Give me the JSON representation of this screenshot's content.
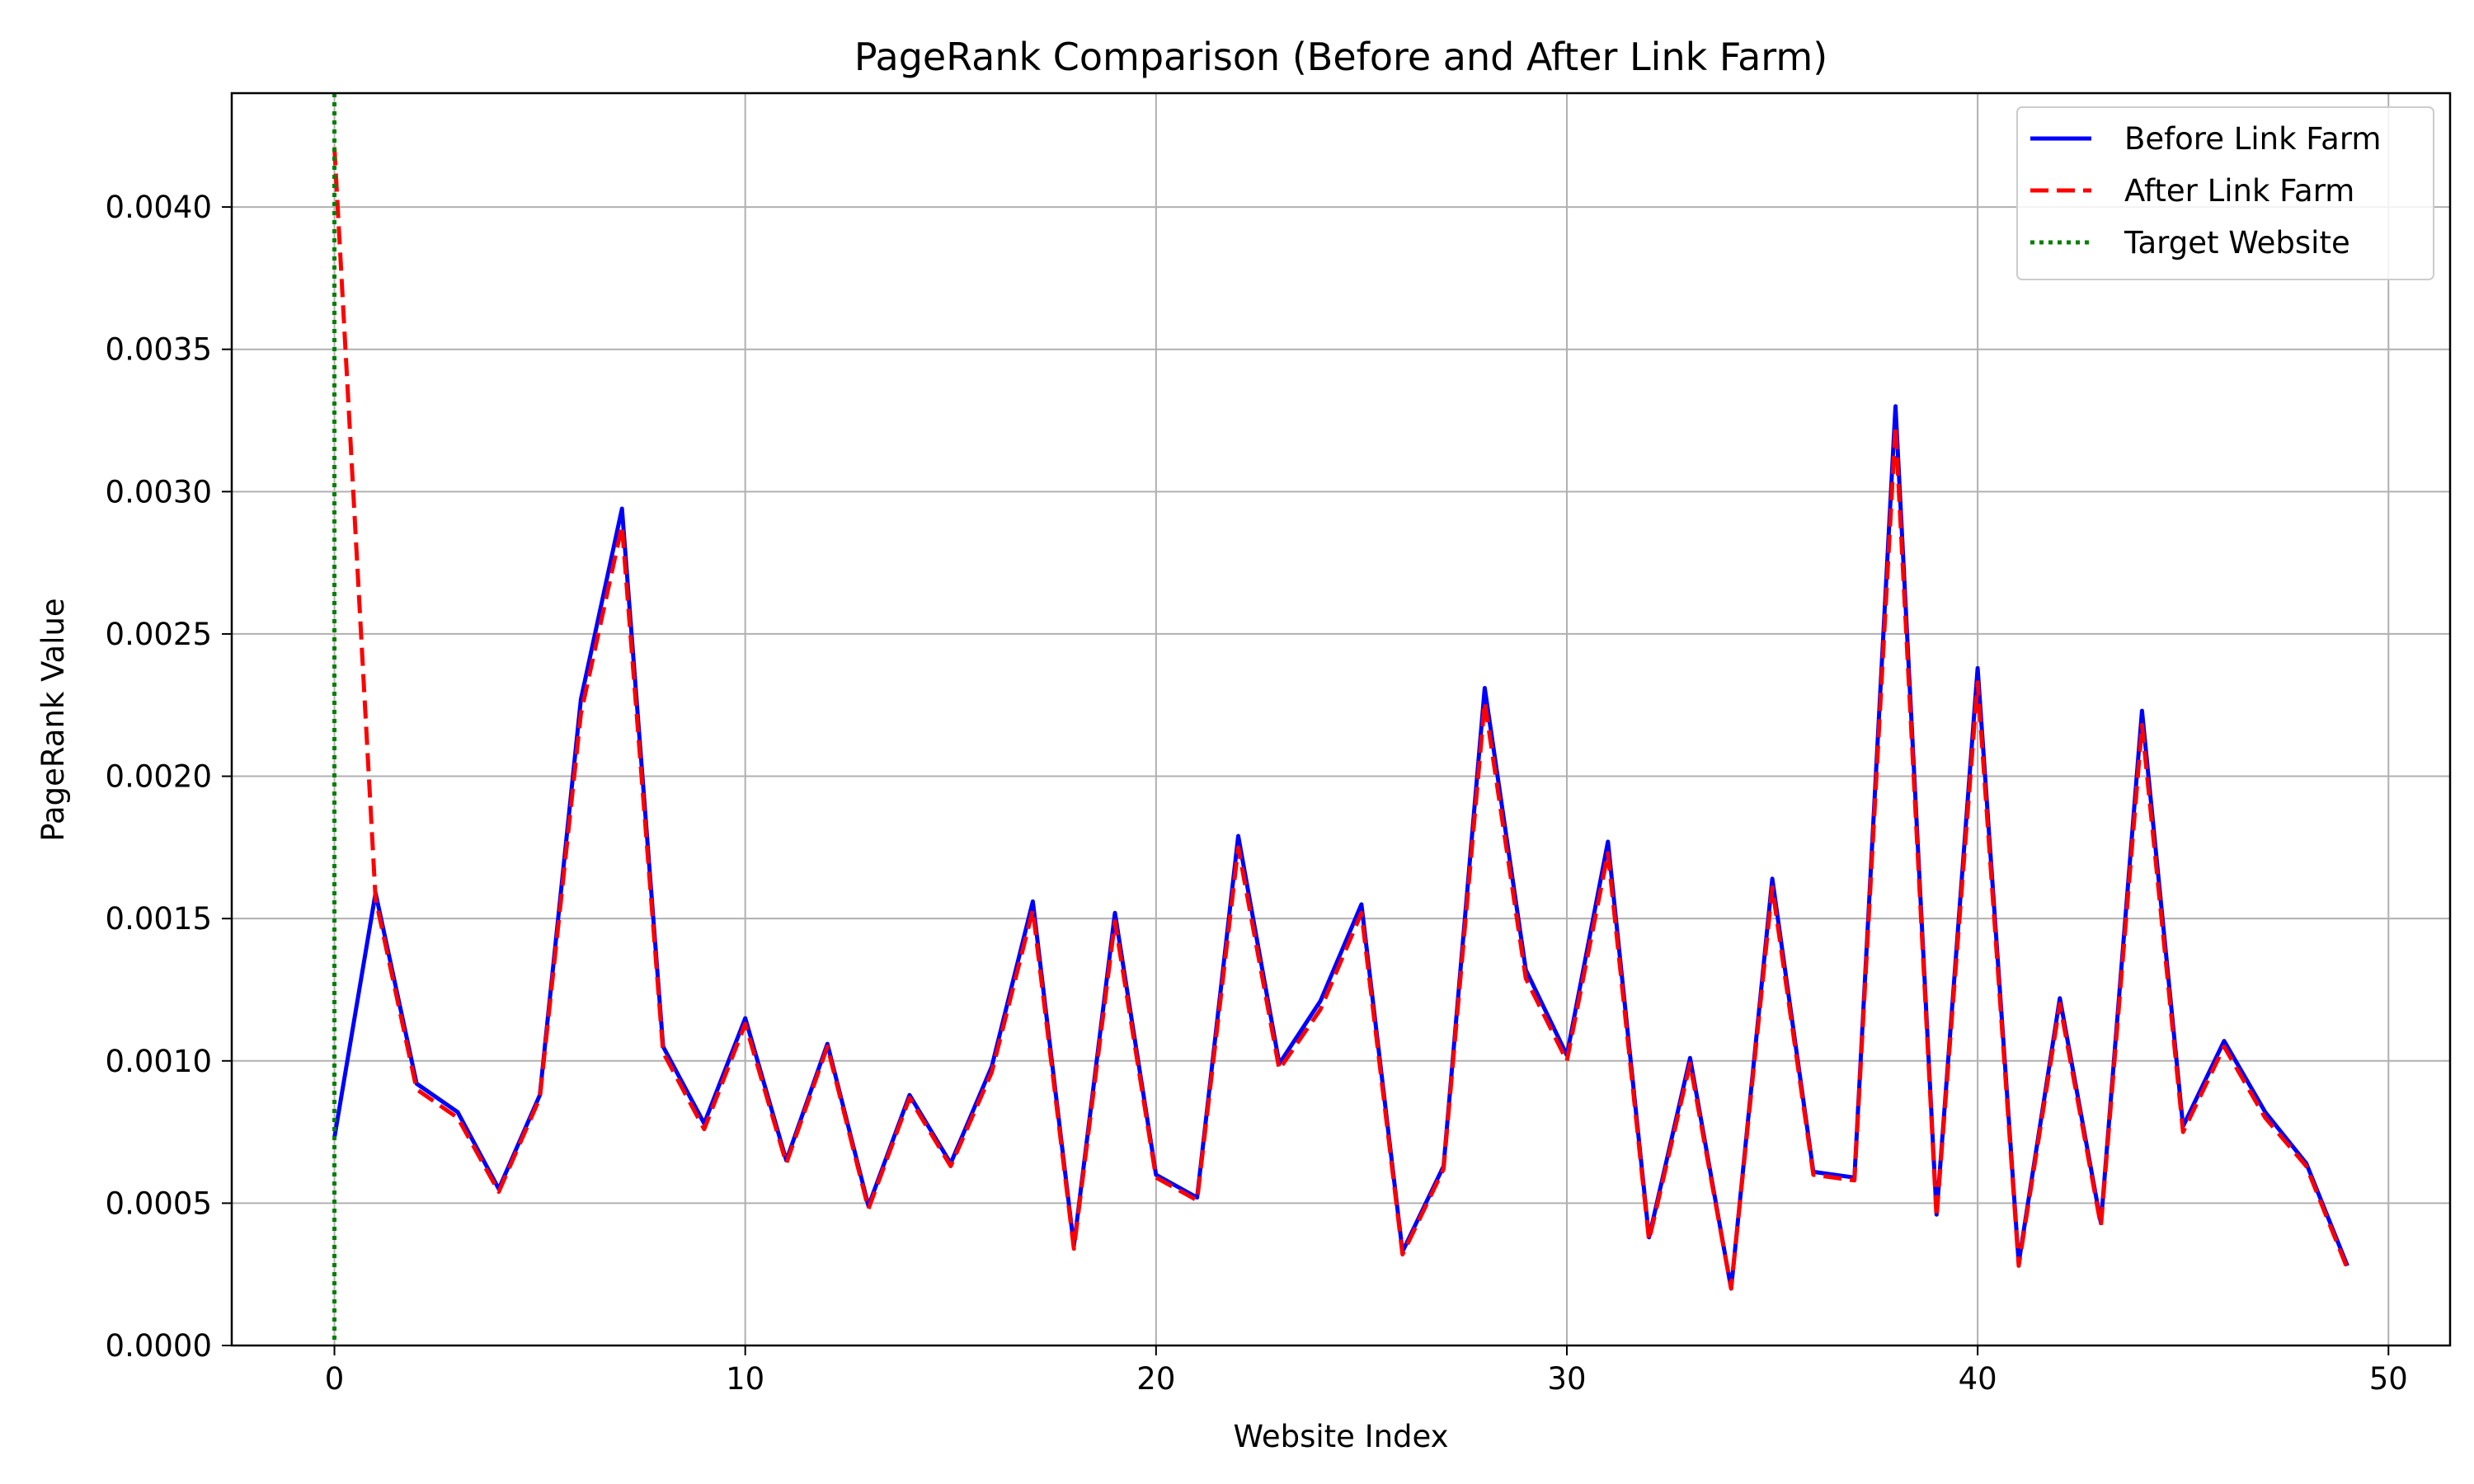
{
  "chart_data": {
    "type": "line",
    "title": "PageRank Comparison (Before and After Link Farm)",
    "xlabel": "Website Index",
    "ylabel": "PageRank Value",
    "xlim": [
      -2.5,
      51.5
    ],
    "ylim": [
      0,
      0.0044
    ],
    "x_ticks": [
      0,
      10,
      20,
      30,
      40,
      50
    ],
    "y_ticks": [
      0,
      0.0005,
      0.001,
      0.0015,
      0.002,
      0.0025,
      0.003,
      0.0035,
      0.004
    ],
    "y_tick_labels": [
      "0.0000",
      "0.0005",
      "0.0010",
      "0.0015",
      "0.0020",
      "0.0025",
      "0.0030",
      "0.0035",
      "0.0040"
    ],
    "grid": true,
    "legend_position": "top-right",
    "x": [
      0,
      1,
      2,
      3,
      4,
      5,
      6,
      7,
      8,
      9,
      10,
      11,
      12,
      13,
      14,
      15,
      16,
      17,
      18,
      19,
      20,
      21,
      22,
      23,
      24,
      25,
      26,
      27,
      28,
      29,
      30,
      31,
      32,
      33,
      34,
      35,
      36,
      37,
      38,
      39,
      40,
      41,
      42,
      43,
      44,
      45,
      46,
      47,
      48,
      49
    ],
    "series": [
      {
        "name": "Before Link Farm",
        "color": "#0000ff",
        "style": "solid",
        "values": [
          0.00073,
          0.00159,
          0.00092,
          0.00082,
          0.00055,
          0.00088,
          0.00227,
          0.00294,
          0.00105,
          0.00078,
          0.00115,
          0.00065,
          0.00106,
          0.00049,
          0.00088,
          0.00064,
          0.00098,
          0.00156,
          0.00035,
          0.00152,
          0.0006,
          0.00052,
          0.00179,
          0.00099,
          0.00121,
          0.00155,
          0.00033,
          0.00063,
          0.00231,
          0.00132,
          0.00102,
          0.00177,
          0.00038,
          0.00101,
          0.0002,
          0.00164,
          0.00061,
          0.00059,
          0.0033,
          0.00046,
          0.00238,
          0.00029,
          0.00122,
          0.00043,
          0.00223,
          0.00077,
          0.00107,
          0.00082,
          0.00064,
          0.00028
        ]
      },
      {
        "name": "After Link Farm",
        "color": "#ff0000",
        "style": "dashed",
        "values": [
          0.00421,
          0.00157,
          0.0009,
          0.0008,
          0.00054,
          0.00087,
          0.00222,
          0.00288,
          0.00103,
          0.00076,
          0.00113,
          0.00064,
          0.00105,
          0.00048,
          0.00087,
          0.00063,
          0.00096,
          0.00153,
          0.00034,
          0.00149,
          0.00059,
          0.00051,
          0.00175,
          0.00097,
          0.00118,
          0.00152,
          0.00032,
          0.00062,
          0.00226,
          0.00129,
          0.001,
          0.00173,
          0.00037,
          0.00099,
          0.0002,
          0.00161,
          0.0006,
          0.00058,
          0.00323,
          0.00045,
          0.00233,
          0.00028,
          0.0012,
          0.00042,
          0.00218,
          0.00075,
          0.00105,
          0.0008,
          0.00063,
          0.00027
        ]
      }
    ],
    "vlines": [
      {
        "name": "Target Website",
        "x": 0,
        "color": "#008000",
        "style": "dotted"
      }
    ]
  }
}
